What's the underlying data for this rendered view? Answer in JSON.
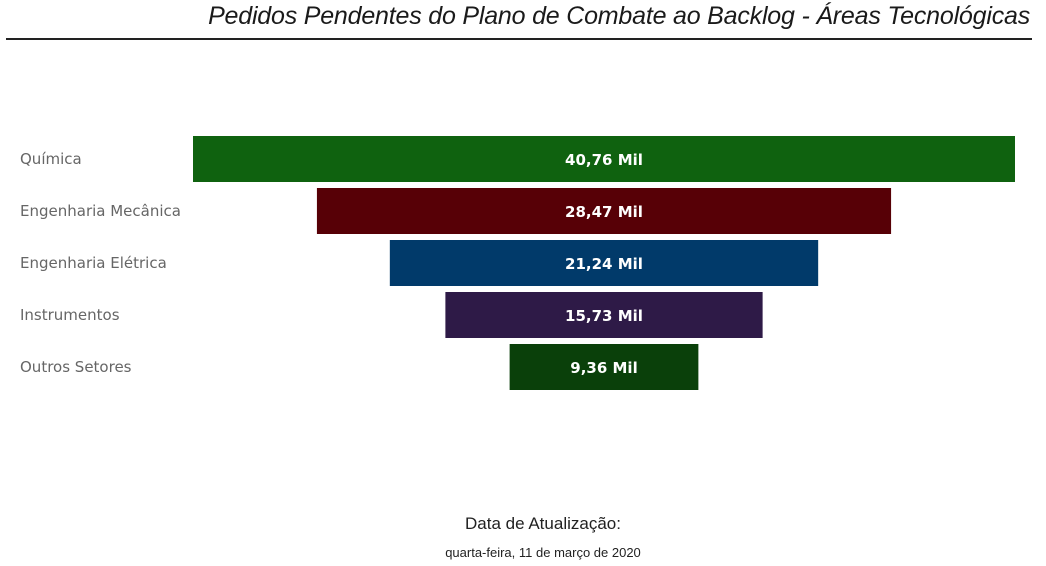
{
  "header": {
    "title": "Pedidos Pendentes do Plano de Combate ao Backlog - Áreas Tecnológicas"
  },
  "chart_data": {
    "type": "bar",
    "subtype": "funnel",
    "categories": [
      "Química",
      "Engenharia Mecânica",
      "Engenharia Elétrica",
      "Instrumentos",
      "Outros Setores"
    ],
    "values": [
      40760,
      28470,
      21240,
      15730,
      9360
    ],
    "value_labels": [
      "40,76 Mil",
      "28,47 Mil",
      "21,24 Mil",
      "15,73 Mil",
      "9,36 Mil"
    ],
    "colors": [
      "#0f620f",
      "#570006",
      "#013a6a",
      "#2e1a47",
      "#0a400a"
    ],
    "legend": "none",
    "grid": false
  },
  "footer": {
    "update_label": "Data de Atualização:",
    "update_date": "quarta-feira, 11 de março de 2020"
  }
}
